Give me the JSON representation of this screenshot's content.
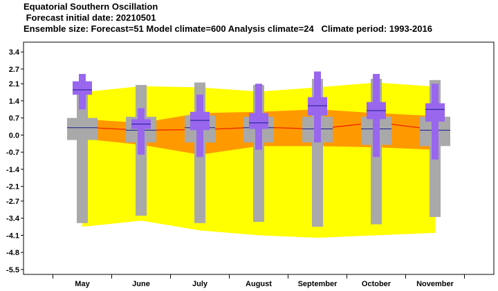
{
  "header": {
    "title": "Equatorial Southern Oscillation",
    "subtitle": " Forecast initial date: 20210501",
    "info": "Ensemble size: Forecast=51 Model climate=600 Analysis climate=24   Climate period: 1993-2016"
  },
  "colors": {
    "outer_band": "#ffff00",
    "inner_band": "#ff9900",
    "climate_box": "#a9a9a9",
    "forecast_box": "#9966ee",
    "median_line": "#1a1a8c",
    "mean_line": "#ee2200"
  },
  "chart_data": {
    "type": "box",
    "title": "Equatorial Southern Oscillation",
    "categories": [
      "May",
      "June",
      "July",
      "August",
      "September",
      "October",
      "November"
    ],
    "y_ticks": [
      "3.4",
      "2.7",
      "2.1",
      "1.4",
      "0.7",
      "0.0",
      "-0.7",
      "-1.4",
      "-2.1",
      "-2.7",
      "-3.4",
      "-4.1",
      "-4.8",
      "-5.5"
    ],
    "ylim": [
      -5.7,
      3.8
    ],
    "analysis_climate_band_outer": {
      "lower": [
        -3.75,
        -3.5,
        -3.9,
        -4.1,
        -4.2,
        -4.1,
        -4.0
      ],
      "upper": [
        1.75,
        2.0,
        1.95,
        1.78,
        1.95,
        2.15,
        1.98
      ]
    },
    "analysis_climate_band_inner": {
      "lower": [
        -0.15,
        -0.4,
        -0.8,
        -0.45,
        -0.45,
        -0.5,
        -0.6
      ],
      "upper": [
        0.65,
        0.5,
        0.9,
        0.95,
        1.05,
        0.9,
        0.78
      ]
    },
    "analysis_climate_median": [
      0.32,
      0.2,
      0.22,
      0.32,
      0.25,
      0.52,
      0.22
    ],
    "model_climate": [
      {
        "min": -3.6,
        "p10": -0.2,
        "p25": -0.2,
        "median": 0.3,
        "p75": 0.7,
        "p90": 0.7,
        "max": 1.85
      },
      {
        "min": -3.3,
        "p10": -0.35,
        "p25": -0.3,
        "median": 0.2,
        "p75": 0.75,
        "p90": 0.75,
        "max": 2.05
      },
      {
        "min": -3.6,
        "p10": -0.3,
        "p25": -0.3,
        "median": 0.3,
        "p75": 0.8,
        "p90": 0.8,
        "max": 2.15
      },
      {
        "min": -3.55,
        "p10": -0.35,
        "p25": -0.3,
        "median": 0.3,
        "p75": 0.75,
        "p90": 0.75,
        "max": 2.05
      },
      {
        "min": -3.75,
        "p10": -0.35,
        "p25": -0.3,
        "median": 0.25,
        "p75": 0.75,
        "p90": 0.75,
        "max": 2.3
      },
      {
        "min": -3.65,
        "p10": -0.4,
        "p25": -0.4,
        "median": 0.25,
        "p75": 0.75,
        "p90": 0.75,
        "max": 2.3
      },
      {
        "min": -3.35,
        "p10": -0.45,
        "p25": -0.45,
        "median": 0.2,
        "p75": 0.75,
        "p90": 0.75,
        "max": 2.25
      }
    ],
    "forecast": [
      {
        "min": 1.05,
        "p25": 1.65,
        "median": 1.85,
        "p75": 2.2,
        "max": 2.5
      },
      {
        "min": -0.8,
        "p25": 0.25,
        "median": 0.45,
        "p75": 0.65,
        "max": 1.1
      },
      {
        "min": -0.9,
        "p25": 0.2,
        "median": 0.6,
        "p75": 0.95,
        "max": 1.65
      },
      {
        "min": -0.6,
        "p25": 0.25,
        "median": 0.5,
        "p75": 0.9,
        "max": 2.1
      },
      {
        "min": -0.3,
        "p25": 0.8,
        "median": 1.2,
        "p75": 1.55,
        "max": 2.6
      },
      {
        "min": -0.9,
        "p25": 0.65,
        "median": 1.0,
        "p75": 1.35,
        "max": 2.5
      },
      {
        "min": -1.0,
        "p25": 0.55,
        "median": 1.05,
        "p75": 1.3,
        "max": 2.1
      }
    ]
  }
}
